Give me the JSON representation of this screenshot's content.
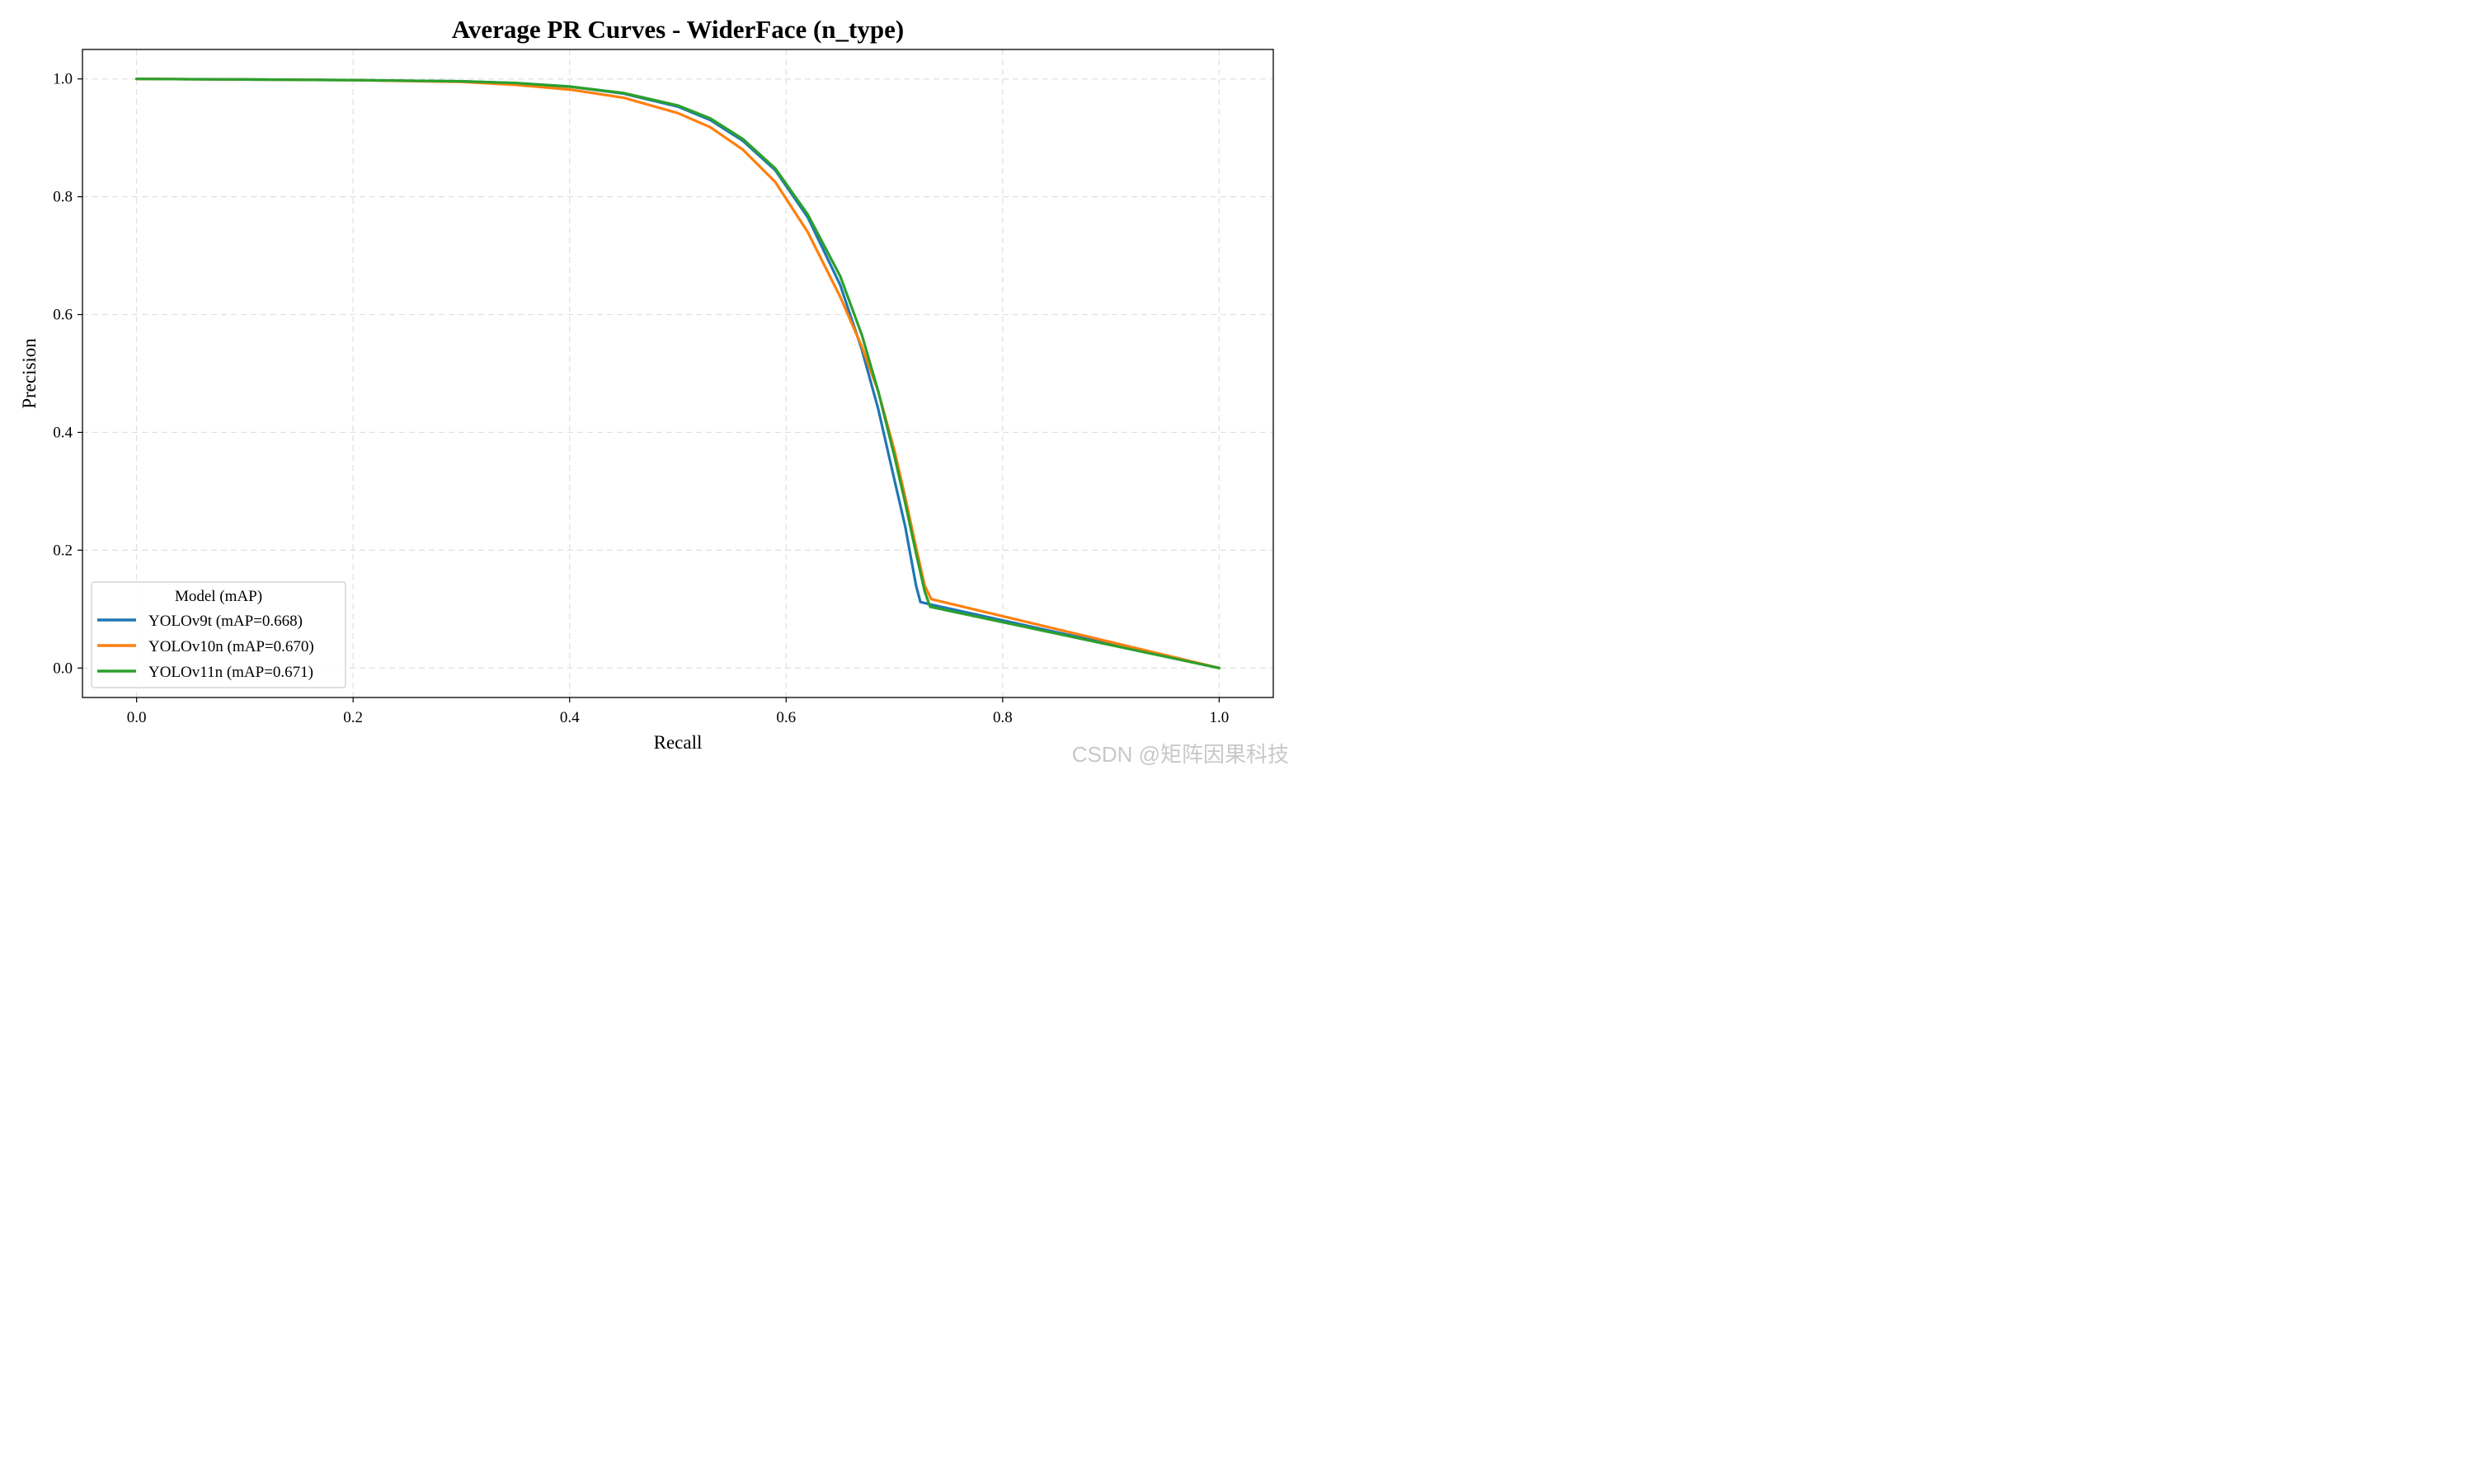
{
  "chart_data": {
    "type": "line",
    "title": "Average PR Curves - WiderFace (n_type)",
    "xlabel": "Recall",
    "ylabel": "Precision",
    "xlim": [
      -0.05,
      1.05
    ],
    "ylim": [
      -0.05,
      1.05
    ],
    "xticks": [
      "0.0",
      "0.2",
      "0.4",
      "0.6",
      "0.8",
      "1.0"
    ],
    "yticks": [
      "0.0",
      "0.2",
      "0.4",
      "0.6",
      "0.8",
      "1.0"
    ],
    "grid": true,
    "legend": {
      "title": "Model (mAP)",
      "position": "lower-left"
    },
    "series": [
      {
        "name": "YOLOv9t (mAP=0.668)",
        "color": "#1f77b4",
        "x": [
          0.0,
          0.1,
          0.2,
          0.3,
          0.35,
          0.4,
          0.45,
          0.5,
          0.53,
          0.56,
          0.59,
          0.62,
          0.65,
          0.67,
          0.685,
          0.7,
          0.71,
          0.72,
          0.724,
          0.733,
          1.0
        ],
        "y": [
          1.0,
          0.999,
          0.998,
          0.996,
          0.993,
          0.987,
          0.975,
          0.953,
          0.93,
          0.895,
          0.845,
          0.765,
          0.65,
          0.54,
          0.44,
          0.32,
          0.24,
          0.14,
          0.112,
          0.108,
          0.0
        ]
      },
      {
        "name": "YOLOv10n (mAP=0.670)",
        "color": "#ff7f0e",
        "x": [
          0.0,
          0.1,
          0.2,
          0.3,
          0.35,
          0.4,
          0.45,
          0.5,
          0.53,
          0.56,
          0.59,
          0.62,
          0.65,
          0.67,
          0.685,
          0.7,
          0.71,
          0.72,
          0.728,
          0.734,
          1.0
        ],
        "y": [
          1.0,
          0.999,
          0.998,
          0.995,
          0.99,
          0.982,
          0.968,
          0.942,
          0.918,
          0.88,
          0.825,
          0.74,
          0.63,
          0.545,
          0.47,
          0.37,
          0.29,
          0.205,
          0.14,
          0.117,
          0.0
        ]
      },
      {
        "name": "YOLOv11n (mAP=0.671)",
        "color": "#2ca02c",
        "x": [
          0.0,
          0.1,
          0.2,
          0.3,
          0.35,
          0.4,
          0.45,
          0.5,
          0.53,
          0.56,
          0.59,
          0.62,
          0.65,
          0.67,
          0.685,
          0.7,
          0.71,
          0.72,
          0.728,
          0.733,
          1.0
        ],
        "y": [
          1.0,
          0.999,
          0.998,
          0.996,
          0.993,
          0.987,
          0.976,
          0.955,
          0.933,
          0.898,
          0.848,
          0.77,
          0.665,
          0.565,
          0.47,
          0.36,
          0.28,
          0.195,
          0.13,
          0.104,
          0.0
        ]
      }
    ]
  },
  "watermark": "CSDN @矩阵因果科技"
}
